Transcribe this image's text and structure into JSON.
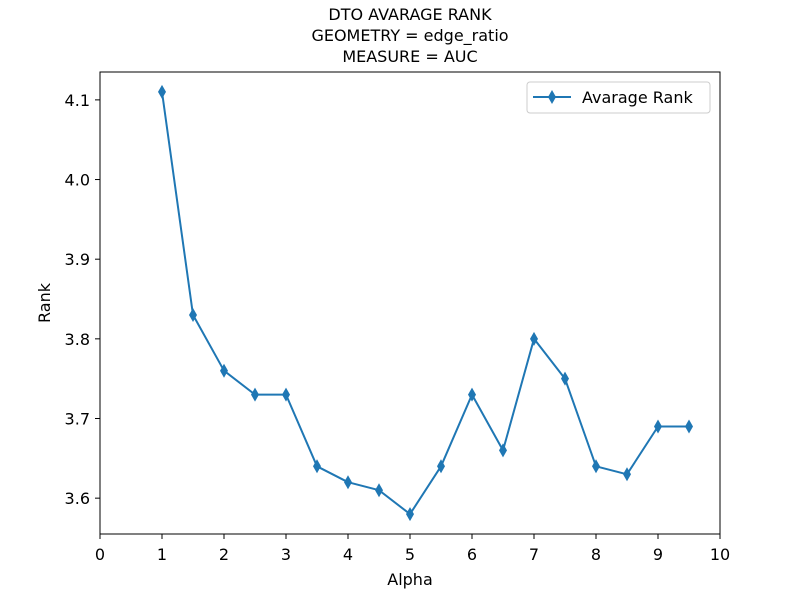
{
  "chart_data": {
    "type": "line",
    "title_lines": [
      "DTO AVARAGE RANK",
      "GEOMETRY = edge_ratio",
      "MEASURE = AUC"
    ],
    "xlabel": "Alpha",
    "ylabel": "Rank",
    "xlim": [
      0,
      10
    ],
    "ylim": [
      3.555,
      4.135
    ],
    "x_ticks": [
      "0",
      "1",
      "2",
      "3",
      "4",
      "5",
      "6",
      "7",
      "8",
      "9",
      "10"
    ],
    "y_ticks": [
      "3.6",
      "3.7",
      "3.8",
      "3.9",
      "4.0",
      "4.1"
    ],
    "grid": false,
    "legend_position": "top-right",
    "series": [
      {
        "name": "Avarage Rank",
        "color": "#1f77b4",
        "marker": "thin-diamond",
        "x": [
          1,
          1.5,
          2,
          2.5,
          3,
          3.5,
          4,
          4.5,
          5,
          5.5,
          6,
          6.5,
          7,
          7.5,
          8,
          8.5,
          9,
          9.5
        ],
        "y": [
          4.11,
          3.83,
          3.76,
          3.73,
          3.73,
          3.64,
          3.62,
          3.61,
          3.58,
          3.64,
          3.73,
          3.66,
          3.8,
          3.75,
          3.64,
          3.63,
          3.69,
          3.69
        ]
      }
    ]
  }
}
